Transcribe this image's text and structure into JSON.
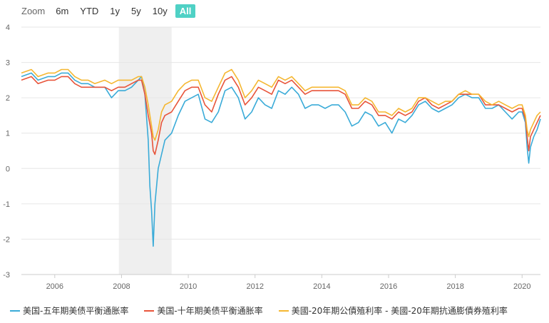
{
  "zoom": {
    "label": "Zoom",
    "buttons": [
      "6m",
      "YTD",
      "1y",
      "5y",
      "10y",
      "All"
    ],
    "active": "All",
    "active_color": "#4fd1c5"
  },
  "recession_band": {
    "from": 2007.92,
    "to": 2009.5,
    "color": "#efefef"
  },
  "chart_data": {
    "type": "line",
    "title": "",
    "xlabel": "",
    "ylabel": "",
    "xlim": [
      2005.0,
      2020.55
    ],
    "ylim": [
      -3,
      4
    ],
    "yticks": [
      -3,
      -2,
      -1,
      0,
      1,
      2,
      3,
      4
    ],
    "xticks": [
      2006,
      2008,
      2010,
      2012,
      2014,
      2016,
      2018,
      2020
    ],
    "grid": "horizontal",
    "legend_position": "bottom",
    "series": [
      {
        "name": "美国-五年期美债平衡通胀率",
        "color": "#3aabd8",
        "points": [
          [
            2005.0,
            2.6
          ],
          [
            2005.3,
            2.7
          ],
          [
            2005.5,
            2.5
          ],
          [
            2005.8,
            2.6
          ],
          [
            2006.0,
            2.6
          ],
          [
            2006.2,
            2.7
          ],
          [
            2006.4,
            2.7
          ],
          [
            2006.6,
            2.5
          ],
          [
            2006.8,
            2.4
          ],
          [
            2007.0,
            2.4
          ],
          [
            2007.2,
            2.3
          ],
          [
            2007.5,
            2.3
          ],
          [
            2007.7,
            2.0
          ],
          [
            2007.9,
            2.2
          ],
          [
            2008.1,
            2.2
          ],
          [
            2008.3,
            2.3
          ],
          [
            2008.5,
            2.5
          ],
          [
            2008.6,
            2.6
          ],
          [
            2008.7,
            2.1
          ],
          [
            2008.8,
            0.8
          ],
          [
            2008.85,
            -0.5
          ],
          [
            2008.9,
            -1.2
          ],
          [
            2008.95,
            -2.2
          ],
          [
            2009.0,
            -1.0
          ],
          [
            2009.1,
            0.0
          ],
          [
            2009.2,
            0.4
          ],
          [
            2009.3,
            0.8
          ],
          [
            2009.5,
            1.0
          ],
          [
            2009.7,
            1.5
          ],
          [
            2009.9,
            1.9
          ],
          [
            2010.1,
            2.0
          ],
          [
            2010.3,
            2.1
          ],
          [
            2010.5,
            1.4
          ],
          [
            2010.7,
            1.3
          ],
          [
            2010.9,
            1.6
          ],
          [
            2011.1,
            2.2
          ],
          [
            2011.3,
            2.3
          ],
          [
            2011.5,
            2.0
          ],
          [
            2011.7,
            1.4
          ],
          [
            2011.9,
            1.6
          ],
          [
            2012.1,
            2.0
          ],
          [
            2012.3,
            1.8
          ],
          [
            2012.5,
            1.7
          ],
          [
            2012.7,
            2.2
          ],
          [
            2012.9,
            2.1
          ],
          [
            2013.1,
            2.3
          ],
          [
            2013.3,
            2.1
          ],
          [
            2013.5,
            1.7
          ],
          [
            2013.7,
            1.8
          ],
          [
            2013.9,
            1.8
          ],
          [
            2014.1,
            1.7
          ],
          [
            2014.3,
            1.8
          ],
          [
            2014.5,
            1.8
          ],
          [
            2014.7,
            1.6
          ],
          [
            2014.9,
            1.2
          ],
          [
            2015.1,
            1.3
          ],
          [
            2015.3,
            1.6
          ],
          [
            2015.5,
            1.5
          ],
          [
            2015.7,
            1.2
          ],
          [
            2015.9,
            1.3
          ],
          [
            2016.1,
            1.0
          ],
          [
            2016.3,
            1.4
          ],
          [
            2016.5,
            1.3
          ],
          [
            2016.7,
            1.5
          ],
          [
            2016.9,
            1.8
          ],
          [
            2017.1,
            1.9
          ],
          [
            2017.3,
            1.7
          ],
          [
            2017.5,
            1.6
          ],
          [
            2017.7,
            1.7
          ],
          [
            2017.9,
            1.8
          ],
          [
            2018.1,
            2.0
          ],
          [
            2018.3,
            2.1
          ],
          [
            2018.5,
            2.0
          ],
          [
            2018.7,
            2.0
          ],
          [
            2018.9,
            1.7
          ],
          [
            2019.1,
            1.7
          ],
          [
            2019.3,
            1.8
          ],
          [
            2019.5,
            1.6
          ],
          [
            2019.7,
            1.4
          ],
          [
            2019.9,
            1.6
          ],
          [
            2020.0,
            1.6
          ],
          [
            2020.1,
            1.3
          ],
          [
            2020.15,
            0.6
          ],
          [
            2020.2,
            0.15
          ],
          [
            2020.25,
            0.6
          ],
          [
            2020.35,
            0.9
          ],
          [
            2020.45,
            1.1
          ],
          [
            2020.55,
            1.4
          ]
        ]
      },
      {
        "name": "美国-十年期美债平衡通胀率",
        "color": "#e8543a",
        "points": [
          [
            2005.0,
            2.5
          ],
          [
            2005.3,
            2.6
          ],
          [
            2005.5,
            2.4
          ],
          [
            2005.8,
            2.5
          ],
          [
            2006.0,
            2.5
          ],
          [
            2006.2,
            2.6
          ],
          [
            2006.4,
            2.6
          ],
          [
            2006.6,
            2.4
          ],
          [
            2006.8,
            2.3
          ],
          [
            2007.0,
            2.3
          ],
          [
            2007.2,
            2.3
          ],
          [
            2007.5,
            2.3
          ],
          [
            2007.7,
            2.2
          ],
          [
            2007.9,
            2.3
          ],
          [
            2008.1,
            2.3
          ],
          [
            2008.3,
            2.4
          ],
          [
            2008.5,
            2.5
          ],
          [
            2008.6,
            2.5
          ],
          [
            2008.7,
            2.1
          ],
          [
            2008.8,
            1.5
          ],
          [
            2008.9,
            1.0
          ],
          [
            2008.95,
            0.5
          ],
          [
            2009.0,
            0.4
          ],
          [
            2009.1,
            0.8
          ],
          [
            2009.2,
            1.3
          ],
          [
            2009.3,
            1.5
          ],
          [
            2009.5,
            1.6
          ],
          [
            2009.7,
            1.9
          ],
          [
            2009.9,
            2.2
          ],
          [
            2010.1,
            2.3
          ],
          [
            2010.3,
            2.3
          ],
          [
            2010.5,
            1.8
          ],
          [
            2010.7,
            1.6
          ],
          [
            2010.9,
            2.1
          ],
          [
            2011.1,
            2.5
          ],
          [
            2011.3,
            2.6
          ],
          [
            2011.5,
            2.3
          ],
          [
            2011.7,
            1.8
          ],
          [
            2011.9,
            2.0
          ],
          [
            2012.1,
            2.3
          ],
          [
            2012.3,
            2.2
          ],
          [
            2012.5,
            2.1
          ],
          [
            2012.7,
            2.5
          ],
          [
            2012.9,
            2.4
          ],
          [
            2013.1,
            2.5
          ],
          [
            2013.3,
            2.3
          ],
          [
            2013.5,
            2.1
          ],
          [
            2013.7,
            2.2
          ],
          [
            2013.9,
            2.2
          ],
          [
            2014.1,
            2.2
          ],
          [
            2014.3,
            2.2
          ],
          [
            2014.5,
            2.2
          ],
          [
            2014.7,
            2.1
          ],
          [
            2014.9,
            1.7
          ],
          [
            2015.1,
            1.7
          ],
          [
            2015.3,
            1.9
          ],
          [
            2015.5,
            1.8
          ],
          [
            2015.7,
            1.5
          ],
          [
            2015.9,
            1.5
          ],
          [
            2016.1,
            1.4
          ],
          [
            2016.3,
            1.6
          ],
          [
            2016.5,
            1.5
          ],
          [
            2016.7,
            1.6
          ],
          [
            2016.9,
            1.9
          ],
          [
            2017.1,
            2.0
          ],
          [
            2017.3,
            1.8
          ],
          [
            2017.5,
            1.7
          ],
          [
            2017.7,
            1.8
          ],
          [
            2017.9,
            1.9
          ],
          [
            2018.1,
            2.1
          ],
          [
            2018.3,
            2.1
          ],
          [
            2018.5,
            2.1
          ],
          [
            2018.7,
            2.1
          ],
          [
            2018.9,
            1.8
          ],
          [
            2019.1,
            1.8
          ],
          [
            2019.3,
            1.8
          ],
          [
            2019.5,
            1.7
          ],
          [
            2019.7,
            1.6
          ],
          [
            2019.9,
            1.7
          ],
          [
            2020.0,
            1.7
          ],
          [
            2020.1,
            1.4
          ],
          [
            2020.15,
            0.9
          ],
          [
            2020.2,
            0.5
          ],
          [
            2020.25,
            0.9
          ],
          [
            2020.35,
            1.1
          ],
          [
            2020.45,
            1.3
          ],
          [
            2020.55,
            1.5
          ]
        ]
      },
      {
        "name": "美國-20年期公債殖利率 - 美國-20年期抗通膨債券殖利率",
        "color": "#f5b731",
        "points": [
          [
            2005.0,
            2.7
          ],
          [
            2005.3,
            2.8
          ],
          [
            2005.5,
            2.6
          ],
          [
            2005.8,
            2.7
          ],
          [
            2006.0,
            2.7
          ],
          [
            2006.2,
            2.8
          ],
          [
            2006.4,
            2.8
          ],
          [
            2006.6,
            2.6
          ],
          [
            2006.8,
            2.5
          ],
          [
            2007.0,
            2.5
          ],
          [
            2007.2,
            2.4
          ],
          [
            2007.5,
            2.5
          ],
          [
            2007.7,
            2.4
          ],
          [
            2007.9,
            2.5
          ],
          [
            2008.1,
            2.5
          ],
          [
            2008.3,
            2.5
          ],
          [
            2008.5,
            2.6
          ],
          [
            2008.6,
            2.6
          ],
          [
            2008.7,
            2.3
          ],
          [
            2008.8,
            1.8
          ],
          [
            2008.9,
            1.2
          ],
          [
            2008.95,
            0.9
          ],
          [
            2009.0,
            0.8
          ],
          [
            2009.1,
            1.1
          ],
          [
            2009.2,
            1.6
          ],
          [
            2009.3,
            1.8
          ],
          [
            2009.5,
            1.9
          ],
          [
            2009.7,
            2.2
          ],
          [
            2009.9,
            2.4
          ],
          [
            2010.1,
            2.5
          ],
          [
            2010.3,
            2.5
          ],
          [
            2010.5,
            2.0
          ],
          [
            2010.7,
            1.9
          ],
          [
            2010.9,
            2.3
          ],
          [
            2011.1,
            2.7
          ],
          [
            2011.3,
            2.8
          ],
          [
            2011.5,
            2.5
          ],
          [
            2011.7,
            2.0
          ],
          [
            2011.9,
            2.2
          ],
          [
            2012.1,
            2.5
          ],
          [
            2012.3,
            2.4
          ],
          [
            2012.5,
            2.3
          ],
          [
            2012.7,
            2.6
          ],
          [
            2012.9,
            2.5
          ],
          [
            2013.1,
            2.6
          ],
          [
            2013.3,
            2.4
          ],
          [
            2013.5,
            2.2
          ],
          [
            2013.7,
            2.3
          ],
          [
            2013.9,
            2.3
          ],
          [
            2014.1,
            2.3
          ],
          [
            2014.3,
            2.3
          ],
          [
            2014.5,
            2.3
          ],
          [
            2014.7,
            2.2
          ],
          [
            2014.9,
            1.8
          ],
          [
            2015.1,
            1.8
          ],
          [
            2015.3,
            2.0
          ],
          [
            2015.5,
            1.9
          ],
          [
            2015.7,
            1.6
          ],
          [
            2015.9,
            1.6
          ],
          [
            2016.1,
            1.5
          ],
          [
            2016.3,
            1.7
          ],
          [
            2016.5,
            1.6
          ],
          [
            2016.7,
            1.7
          ],
          [
            2016.9,
            2.0
          ],
          [
            2017.1,
            2.0
          ],
          [
            2017.3,
            1.9
          ],
          [
            2017.5,
            1.8
          ],
          [
            2017.7,
            1.9
          ],
          [
            2017.9,
            1.9
          ],
          [
            2018.1,
            2.1
          ],
          [
            2018.3,
            2.2
          ],
          [
            2018.5,
            2.1
          ],
          [
            2018.7,
            2.1
          ],
          [
            2018.9,
            1.9
          ],
          [
            2019.1,
            1.8
          ],
          [
            2019.3,
            1.9
          ],
          [
            2019.5,
            1.8
          ],
          [
            2019.7,
            1.7
          ],
          [
            2019.9,
            1.8
          ],
          [
            2020.0,
            1.8
          ],
          [
            2020.1,
            1.5
          ],
          [
            2020.15,
            1.1
          ],
          [
            2020.2,
            0.9
          ],
          [
            2020.25,
            1.1
          ],
          [
            2020.35,
            1.3
          ],
          [
            2020.45,
            1.5
          ],
          [
            2020.55,
            1.6
          ]
        ]
      }
    ]
  }
}
